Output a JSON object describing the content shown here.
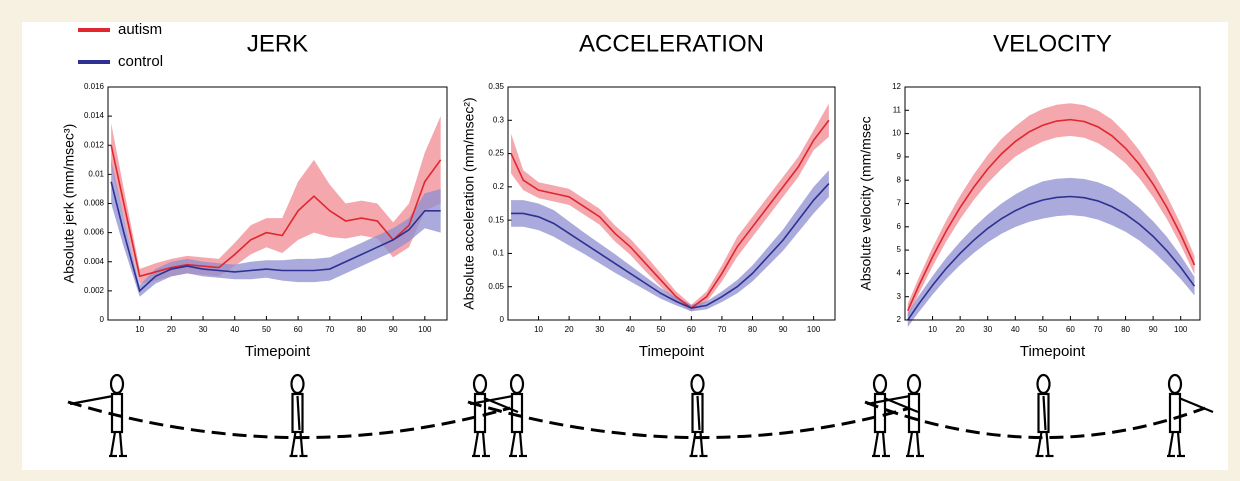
{
  "chart_data": [
    {
      "type": "line",
      "title": "JERK",
      "xlabel": "Timepoint",
      "ylabel": "Absolute jerk (mm/msec³)",
      "x": [
        1,
        5,
        10,
        15,
        20,
        25,
        30,
        35,
        40,
        45,
        50,
        55,
        60,
        65,
        70,
        75,
        80,
        85,
        90,
        95,
        100,
        105
      ],
      "xlim": [
        0,
        107
      ],
      "xticks": [
        10,
        20,
        30,
        40,
        50,
        60,
        70,
        80,
        90,
        100
      ],
      "ylim": [
        0,
        0.016
      ],
      "yticks": [
        0,
        0.002,
        0.004,
        0.006,
        0.008,
        0.01,
        0.012,
        0.014,
        0.016
      ],
      "legend": "top-left",
      "series": [
        {
          "name": "autism",
          "color": "#e0262f",
          "band_color": "#f08a90",
          "values": [
            0.012,
            0.008,
            0.003,
            0.0033,
            0.0036,
            0.0038,
            0.0037,
            0.0036,
            0.0045,
            0.0055,
            0.006,
            0.0058,
            0.0075,
            0.0085,
            0.0075,
            0.0068,
            0.007,
            0.0068,
            0.0055,
            0.0065,
            0.0095,
            0.011
          ],
          "error": [
            0.0015,
            0.001,
            0.0005,
            0.0006,
            0.0006,
            0.0006,
            0.0006,
            0.0006,
            0.0008,
            0.001,
            0.001,
            0.0012,
            0.002,
            0.0025,
            0.0018,
            0.0012,
            0.0012,
            0.0012,
            0.0012,
            0.0015,
            0.002,
            0.003
          ]
        },
        {
          "name": "control",
          "color": "#2e3192",
          "band_color": "#8d8fd0",
          "values": [
            0.0095,
            0.006,
            0.002,
            0.003,
            0.0035,
            0.0037,
            0.0035,
            0.0034,
            0.0033,
            0.0034,
            0.0035,
            0.0034,
            0.0034,
            0.0034,
            0.0035,
            0.004,
            0.0045,
            0.005,
            0.0055,
            0.0062,
            0.0075,
            0.0075
          ],
          "error": [
            0.0015,
            0.001,
            0.0004,
            0.0005,
            0.0005,
            0.0005,
            0.0005,
            0.0005,
            0.0005,
            0.0006,
            0.0006,
            0.0007,
            0.0008,
            0.0008,
            0.0008,
            0.0008,
            0.0008,
            0.0008,
            0.0008,
            0.0008,
            0.0012,
            0.0015
          ]
        }
      ]
    },
    {
      "type": "line",
      "title": "ACCELERATION",
      "xlabel": "Timepoint",
      "ylabel": "Absolute acceleration (mm/msec²)",
      "x": [
        1,
        5,
        10,
        15,
        20,
        25,
        30,
        35,
        40,
        45,
        50,
        55,
        60,
        65,
        70,
        75,
        80,
        85,
        90,
        95,
        100,
        105
      ],
      "xlim": [
        0,
        107
      ],
      "xticks": [
        10,
        20,
        30,
        40,
        50,
        60,
        70,
        80,
        90,
        100
      ],
      "ylim": [
        0,
        0.35
      ],
      "yticks": [
        0,
        0.05,
        0.1,
        0.15,
        0.2,
        0.25,
        0.3,
        0.35
      ],
      "series": [
        {
          "color": "#e0262f",
          "band_color": "#f08a90",
          "values": [
            0.25,
            0.21,
            0.195,
            0.19,
            0.185,
            0.17,
            0.155,
            0.13,
            0.11,
            0.085,
            0.06,
            0.035,
            0.018,
            0.035,
            0.07,
            0.11,
            0.14,
            0.17,
            0.2,
            0.23,
            0.27,
            0.3
          ],
          "error": [
            0.03,
            0.015,
            0.012,
            0.012,
            0.012,
            0.012,
            0.012,
            0.012,
            0.012,
            0.012,
            0.01,
            0.008,
            0.005,
            0.008,
            0.012,
            0.015,
            0.015,
            0.015,
            0.015,
            0.015,
            0.015,
            0.025
          ]
        },
        {
          "color": "#2e3192",
          "band_color": "#8d8fd0",
          "values": [
            0.16,
            0.16,
            0.155,
            0.145,
            0.13,
            0.115,
            0.1,
            0.085,
            0.07,
            0.055,
            0.04,
            0.028,
            0.018,
            0.022,
            0.035,
            0.05,
            0.07,
            0.095,
            0.12,
            0.15,
            0.18,
            0.205
          ],
          "error": [
            0.02,
            0.02,
            0.02,
            0.02,
            0.018,
            0.016,
            0.015,
            0.014,
            0.012,
            0.01,
            0.008,
            0.006,
            0.005,
            0.006,
            0.008,
            0.01,
            0.012,
            0.014,
            0.016,
            0.018,
            0.02,
            0.02
          ]
        }
      ]
    },
    {
      "type": "line",
      "title": "VELOCITY",
      "xlabel": "Timepoint",
      "ylabel": "Absolute velocity (mm/msec",
      "x": [
        1,
        5,
        10,
        15,
        20,
        25,
        30,
        35,
        40,
        45,
        50,
        55,
        60,
        65,
        70,
        75,
        80,
        85,
        90,
        95,
        100,
        105
      ],
      "xlim": [
        0,
        107
      ],
      "xticks": [
        10,
        20,
        30,
        40,
        50,
        60,
        70,
        80,
        90,
        100
      ],
      "ylim": [
        2,
        12
      ],
      "yticks": [
        2,
        3,
        4,
        5,
        6,
        7,
        8,
        9,
        10,
        11,
        12
      ],
      "series": [
        {
          "color": "#e0262f",
          "band_color": "#f08a90",
          "values": [
            2.4,
            3.47,
            4.71,
            5.83,
            6.83,
            7.71,
            8.48,
            9.13,
            9.66,
            10.07,
            10.36,
            10.54,
            10.6,
            10.52,
            10.29,
            9.91,
            9.37,
            8.68,
            7.83,
            6.83,
            5.67,
            4.36
          ],
          "error": [
            0.3,
            0.35,
            0.4,
            0.45,
            0.5,
            0.55,
            0.6,
            0.65,
            0.65,
            0.7,
            0.7,
            0.7,
            0.7,
            0.7,
            0.7,
            0.7,
            0.65,
            0.6,
            0.55,
            0.5,
            0.45,
            0.4
          ]
        },
        {
          "color": "#2e3192",
          "band_color": "#8d8fd0",
          "values": [
            2.0,
            2.69,
            3.49,
            4.22,
            4.86,
            5.43,
            5.93,
            6.35,
            6.69,
            6.96,
            7.15,
            7.26,
            7.3,
            7.25,
            7.11,
            6.87,
            6.54,
            6.11,
            5.59,
            4.97,
            4.26,
            3.45
          ],
          "error": [
            0.3,
            0.35,
            0.4,
            0.45,
            0.5,
            0.55,
            0.6,
            0.65,
            0.7,
            0.75,
            0.8,
            0.8,
            0.8,
            0.8,
            0.8,
            0.8,
            0.75,
            0.7,
            0.65,
            0.6,
            0.5,
            0.4
          ]
        }
      ]
    }
  ]
}
